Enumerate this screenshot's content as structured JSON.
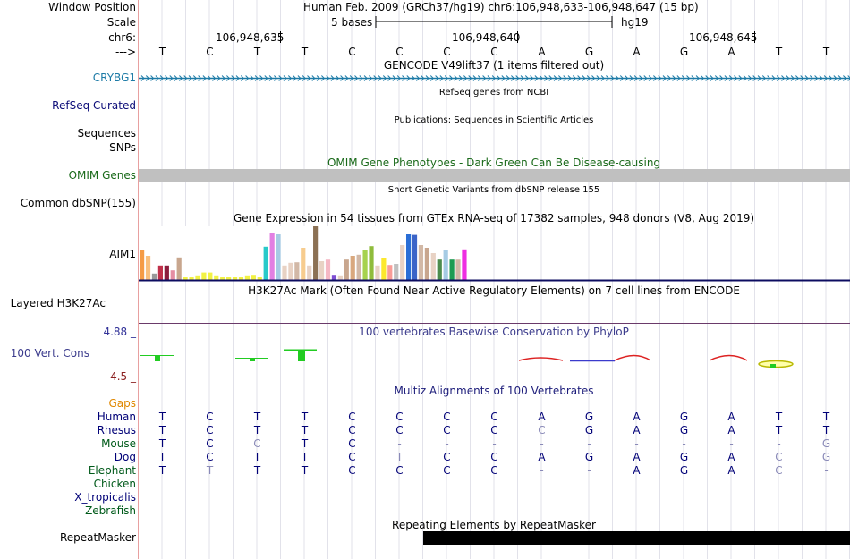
{
  "labels": {
    "window_position": "Window Position",
    "scale": "Scale",
    "chrom": "chr6:",
    "arrow": "--->",
    "gencode": "CRYBG1",
    "refseq": "RefSeq Curated",
    "pubs1": "Sequences",
    "pubs2": "SNPs",
    "omim": "OMIM Genes",
    "dbsnp": "Common dbSNP(155)",
    "gtex": "AIM1",
    "h3k27ac": "Layered H3K27Ac",
    "cons_max": "4.88 _",
    "cons": "100 Vert. Cons",
    "cons_min": "-4.5 _",
    "gaps": "Gaps"
  },
  "header": {
    "position_text": "Human Feb. 2009 (GRCh37/hg19)   chr6:106,948,633-106,948,647 (15 bp)",
    "scale_text": "5 bases",
    "assembly": "hg19",
    "coords": [
      "106,948,635",
      "106,948,640",
      "106,948,645"
    ]
  },
  "bases": [
    "T",
    "C",
    "T",
    "T",
    "C",
    "C",
    "C",
    "C",
    "A",
    "G",
    "A",
    "G",
    "A",
    "T",
    "T"
  ],
  "tracks": {
    "gencode_title": "GENCODE V49lift37 (1 items filtered out)",
    "refseq_title": "RefSeq genes from NCBI",
    "pubs_title": "Publications: Sequences in Scientific Articles",
    "omim_title": "OMIM Gene Phenotypes - Dark Green Can Be Disease-causing",
    "dbsnp_title": "Short Genetic Variants from dbSNP release 155",
    "gtex_title": "Gene Expression in 54 tissues from GTEx RNA-seq of 17382 samples, 948 donors (V8, Aug 2019)",
    "h3k27ac_title": "H3K27Ac Mark (Often Found Near Active Regulatory Elements) on 7 cell lines from ENCODE",
    "cons_title": "100 vertebrates Basewise Conservation by PhyloP",
    "multiz_title": "Multiz Alignments of 100 Vertebrates",
    "repeat_title": "Repeating Elements by RepeatMasker",
    "repeat_label": "RepeatMasker"
  },
  "gtex_bars": [
    {
      "color": "#f59b45",
      "h": 0.55
    },
    {
      "color": "#f9bf7c",
      "h": 0.45
    },
    {
      "color": "#999999",
      "h": 0.12
    },
    {
      "color": "#c0304a",
      "h": 0.27
    },
    {
      "color": "#8b1c3c",
      "h": 0.27
    },
    {
      "color": "#e58ea3",
      "h": 0.18
    },
    {
      "color": "#c8a68e",
      "h": 0.42
    },
    {
      "color": "#f2f244",
      "h": 0.05
    },
    {
      "color": "#f2f244",
      "h": 0.05
    },
    {
      "color": "#f2f244",
      "h": 0.07
    },
    {
      "color": "#f2f244",
      "h": 0.14
    },
    {
      "color": "#f2f244",
      "h": 0.14
    },
    {
      "color": "#f2f244",
      "h": 0.07
    },
    {
      "color": "#f2f244",
      "h": 0.05
    },
    {
      "color": "#f2f244",
      "h": 0.05
    },
    {
      "color": "#f2f244",
      "h": 0.05
    },
    {
      "color": "#f2f244",
      "h": 0.05
    },
    {
      "color": "#f2f244",
      "h": 0.07
    },
    {
      "color": "#f2f244",
      "h": 0.08
    },
    {
      "color": "#f2f244",
      "h": 0.05
    },
    {
      "color": "#28c9c9",
      "h": 0.62
    },
    {
      "color": "#e280e2",
      "h": 0.88
    },
    {
      "color": "#a6cbe4",
      "h": 0.85
    },
    {
      "color": "#e8d2c4",
      "h": 0.27
    },
    {
      "color": "#e8d2c4",
      "h": 0.32
    },
    {
      "color": "#d2b8a6",
      "h": 0.33
    },
    {
      "color": "#f7cc8e",
      "h": 0.6
    },
    {
      "color": "#e8d2c4",
      "h": 0.27
    },
    {
      "color": "#8c7154",
      "h": 1.0
    },
    {
      "color": "#e8d2c4",
      "h": 0.35
    },
    {
      "color": "#f5b8c4",
      "h": 0.38
    },
    {
      "color": "#7e4ed2",
      "h": 0.08
    },
    {
      "color": "#e8d2c4",
      "h": 0.07
    },
    {
      "color": "#c8a68e",
      "h": 0.38
    },
    {
      "color": "#d9a87e",
      "h": 0.45
    },
    {
      "color": "#d2b8a6",
      "h": 0.47
    },
    {
      "color": "#a6d24e",
      "h": 0.55
    },
    {
      "color": "#8fbc3c",
      "h": 0.63
    },
    {
      "color": "#e8d2c4",
      "h": 0.27
    },
    {
      "color": "#fce82e",
      "h": 0.4
    },
    {
      "color": "#f99d98",
      "h": 0.28
    },
    {
      "color": "#c0c0c0",
      "h": 0.3
    },
    {
      "color": "#e8d2c4",
      "h": 0.65
    },
    {
      "color": "#2a6ed6",
      "h": 0.85
    },
    {
      "color": "#3b64c8",
      "h": 0.84
    },
    {
      "color": "#d2b8a6",
      "h": 0.65
    },
    {
      "color": "#c8a68e",
      "h": 0.6
    },
    {
      "color": "#e8d2c4",
      "h": 0.5
    },
    {
      "color": "#4d8c4d",
      "h": 0.38
    },
    {
      "color": "#a6cbe4",
      "h": 0.56
    },
    {
      "color": "#1d9b52",
      "h": 0.38
    },
    {
      "color": "#d2b8a6",
      "h": 0.38
    },
    {
      "color": "#ee2ee2",
      "h": 0.57
    }
  ],
  "species": [
    {
      "name": "Human",
      "color": "#000077",
      "bases": [
        "T",
        "C",
        "T",
        "T",
        "C",
        "C",
        "C",
        "C",
        "A",
        "G",
        "A",
        "G",
        "A",
        "T",
        "T"
      ],
      "dim": []
    },
    {
      "name": "Rhesus",
      "color": "#000077",
      "bases": [
        "T",
        "C",
        "T",
        "T",
        "C",
        "C",
        "C",
        "C",
        "C",
        "G",
        "A",
        "G",
        "A",
        "T",
        "T"
      ],
      "dim": [
        8
      ]
    },
    {
      "name": "Mouse",
      "color": "#005a1a",
      "bases": [
        "T",
        "C",
        "C",
        "T",
        "C",
        "-",
        "-",
        "-",
        "-",
        "-",
        "-",
        "-",
        "-",
        "-",
        "G"
      ],
      "dim": [
        2,
        5,
        6,
        7,
        8,
        9,
        10,
        11,
        12,
        13,
        14
      ]
    },
    {
      "name": "Dog",
      "color": "#000077",
      "bases": [
        "T",
        "C",
        "T",
        "T",
        "C",
        "T",
        "C",
        "C",
        "A",
        "G",
        "A",
        "G",
        "A",
        "C",
        "G"
      ],
      "dim": [
        5,
        13,
        14
      ]
    },
    {
      "name": "Elephant",
      "color": "#005a1a",
      "bases": [
        "T",
        "T",
        "T",
        "T",
        "C",
        "C",
        "C",
        "C",
        "-",
        "-",
        "A",
        "G",
        "A",
        "C",
        "-"
      ],
      "dim": [
        1,
        8,
        9,
        13,
        14
      ]
    },
    {
      "name": "Chicken",
      "color": "#005a1a",
      "bases": [],
      "dim": []
    },
    {
      "name": "X_tropicalis",
      "color": "#000077",
      "bases": [],
      "dim": []
    },
    {
      "name": "Zebrafish",
      "color": "#005a1a",
      "bases": [],
      "dim": []
    }
  ],
  "colors": {
    "gencode": "#1c7aa6",
    "refseq": "#0c0c78",
    "omim": "#1a6a1a",
    "omim_bar": "#c0c0c0",
    "cons_label": "#3b3b8c",
    "cons_max": "#333399",
    "cons_min": "#8b2020",
    "gaps": "#e08800",
    "guide": "#e2e2ea",
    "dim_base": "#8a8ab8"
  }
}
